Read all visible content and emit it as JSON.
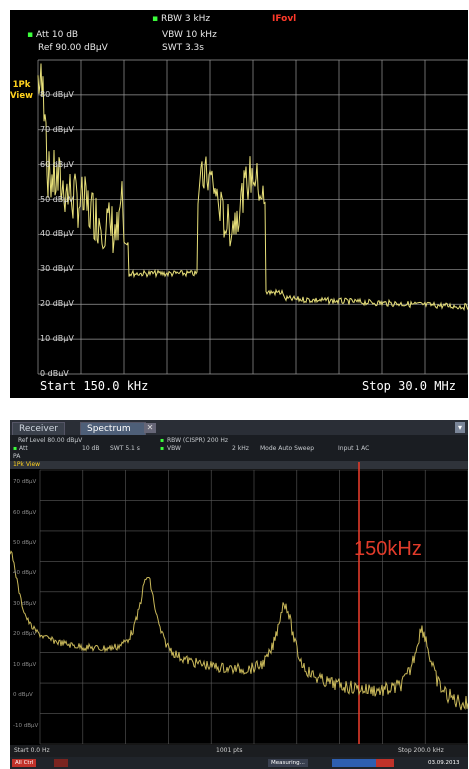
{
  "top": {
    "rbw": "RBW 3 kHz",
    "ifovl": "IFovl",
    "att": "Att  10 dB",
    "vbw": "VBW 10 kHz",
    "ref": "Ref  90.00 dBµV",
    "swt": "SWT 3.3s",
    "trace_label_1": "1Pk",
    "trace_label_2": "View",
    "y_labels": [
      "80 dBµV",
      "70 dBµV",
      "60 dBµV",
      "50 dBµV",
      "40 dBµV",
      "30 dBµV",
      "20 dBµV",
      "10 dBµV",
      "0 dBµV"
    ],
    "start": "Start 150.0 kHz",
    "stop": "Stop 30.0 MHz",
    "trace_color": "#e8e07a"
  },
  "bottom": {
    "tabs": [
      "Receiver",
      "Spectrum"
    ],
    "ref_level": "Ref Level  80.00 dBµV",
    "att": "Att",
    "att_val": "10 dB",
    "swt": "SWT  5.1 s",
    "pa": "PA",
    "rbw": "RBW  (CISPR) 200 Hz",
    "vbw": "VBW",
    "vbw_val": "2 kHz",
    "mode": "Mode  Auto Sweep",
    "input": "Input  1 AC",
    "view": "1Pk View",
    "marker": "150kHz",
    "y_labels": [
      "70 dBµV",
      "60 dBµV",
      "50 dBµV",
      "40 dBµV",
      "30 dBµV",
      "20 dBµV",
      "10 dBµV",
      "0 dBµV",
      "-10 dBµV"
    ],
    "start": "Start 0.0 Hz",
    "points": "1001 pts",
    "stop": "Stop 200.0 kHz",
    "status_left": "All Ctrl",
    "status_mid": "Measuring...",
    "status_date": "03.09.2013",
    "trace_color": "#c9b85a",
    "marker_color": "#e23b2a"
  }
}
